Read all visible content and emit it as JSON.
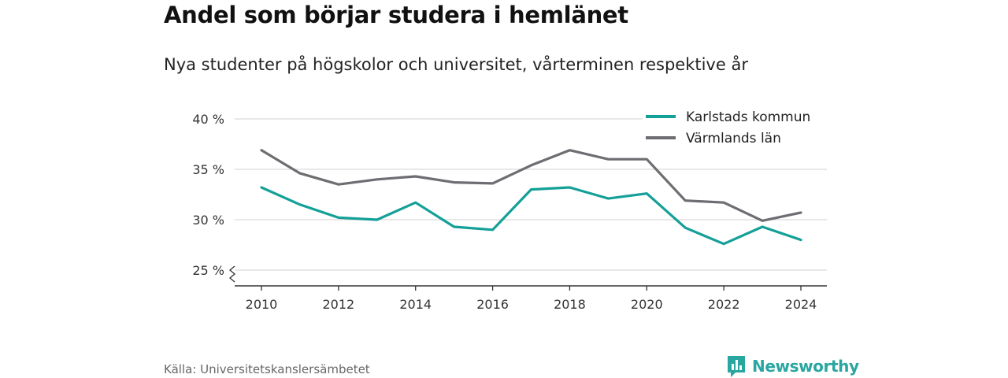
{
  "title": "Andel som börjar studera i hemlänet",
  "subtitle": "Nya studenter på högskolor och universitet, vårterminen respektive år",
  "source": "Källa: Universitetskanslersämbetet",
  "brand": "Newsworthy",
  "colors": {
    "series_1": "#14a098",
    "series_2": "#6d6d72",
    "grid": "#d9d9d9",
    "axis": "#333333",
    "brand": "#2aa6a0"
  },
  "chart_data": {
    "type": "line",
    "x": [
      2010,
      2011,
      2012,
      2013,
      2014,
      2015,
      2016,
      2017,
      2018,
      2019,
      2020,
      2021,
      2022,
      2023,
      2024
    ],
    "x_ticks": [
      2010,
      2012,
      2014,
      2016,
      2018,
      2020,
      2022,
      2024
    ],
    "x_tick_labels": [
      "2010",
      "2012",
      "2014",
      "2016",
      "2018",
      "2020",
      "2022",
      "2024"
    ],
    "y_ticks": [
      25,
      30,
      35,
      40
    ],
    "y_tick_labels": [
      "25 %",
      "30 %",
      "35 %",
      "40 %"
    ],
    "ylim": [
      25,
      40
    ],
    "y_axis_break": true,
    "grid": true,
    "legend_position": "top-right",
    "series": [
      {
        "name": "Karlstads kommun",
        "color": "#14a098",
        "values": [
          33.2,
          31.5,
          30.2,
          30.0,
          31.7,
          29.3,
          29.0,
          33.0,
          33.2,
          32.1,
          32.6,
          29.2,
          27.6,
          29.3,
          28.0
        ]
      },
      {
        "name": "Värmlands län",
        "color": "#6d6d72",
        "values": [
          36.9,
          34.6,
          33.5,
          34.0,
          34.3,
          33.7,
          33.6,
          35.4,
          36.9,
          36.0,
          36.0,
          31.9,
          31.7,
          29.9,
          30.7
        ]
      }
    ]
  }
}
